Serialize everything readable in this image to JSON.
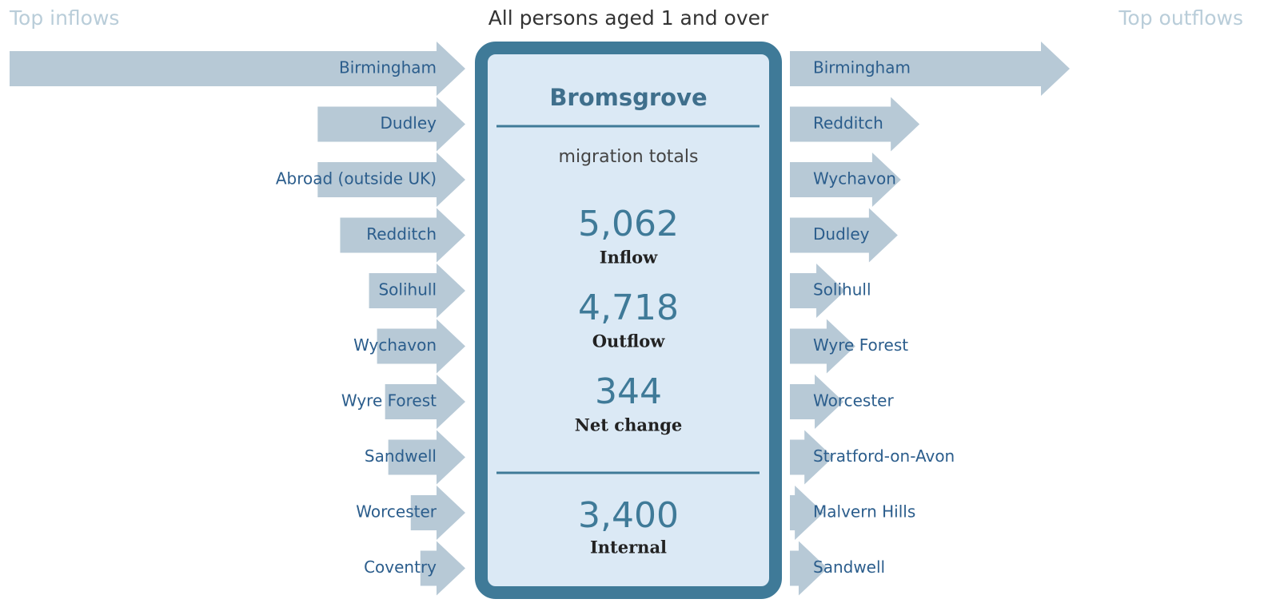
{
  "header": {
    "left": "Top inflows",
    "title": "All persons aged 1 and over",
    "right": "Top outflows"
  },
  "inflows": [
    {
      "name": "Birmingham",
      "value": 1420
    },
    {
      "name": "Dudley",
      "value": 460
    },
    {
      "name": "Abroad (outside UK)",
      "value": 460
    },
    {
      "name": "Redditch",
      "value": 390
    },
    {
      "name": "Solihull",
      "value": 300
    },
    {
      "name": "Wychavon",
      "value": 275
    },
    {
      "name": "Wyre Forest",
      "value": 250
    },
    {
      "name": "Sandwell",
      "value": 240
    },
    {
      "name": "Worcester",
      "value": 170
    },
    {
      "name": "Coventry",
      "value": 140
    }
  ],
  "outflows": [
    {
      "name": "Birmingham",
      "value": 872
    },
    {
      "name": "Redditch",
      "value": 404
    },
    {
      "name": "Wychavon",
      "value": 346
    },
    {
      "name": "Dudley",
      "value": 336
    },
    {
      "name": "Solihull",
      "value": 172
    },
    {
      "name": "Wyre Forest",
      "value": 204
    },
    {
      "name": "Worcester",
      "value": 167
    },
    {
      "name": "Stratford-on-Avon",
      "value": 135
    },
    {
      "name": "Malvern Hills",
      "value": 105
    },
    {
      "name": "Sandwell",
      "value": 117
    }
  ],
  "panel": {
    "place": "Bromsgrove",
    "subtitle": "migration totals",
    "totals": [
      {
        "value": "5,062",
        "label": "Inflow"
      },
      {
        "value": "4,718",
        "label": "Outflow"
      },
      {
        "value": "344",
        "label": "Net change"
      },
      {
        "value": "3,400",
        "label": "Internal"
      }
    ]
  }
}
